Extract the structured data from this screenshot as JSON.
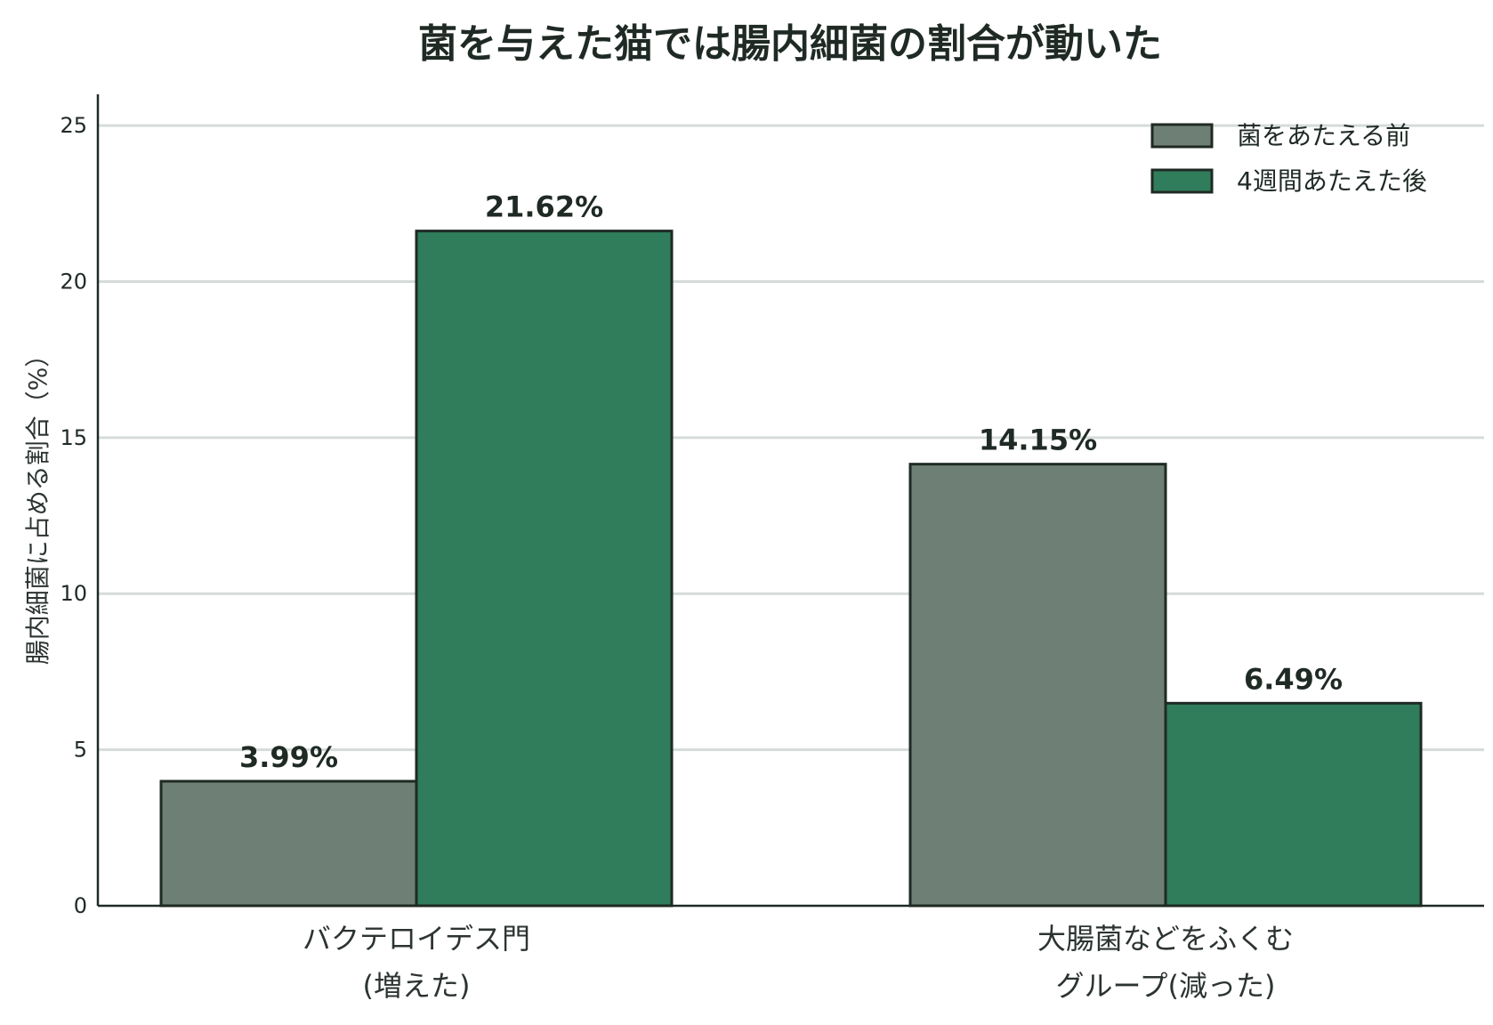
{
  "chart_data": {
    "type": "bar",
    "title": "菌を与えた猫では腸内細菌の割合が動いた",
    "ylabel": "腸内細菌に占める割合（%）",
    "xlabel": "",
    "ylim": [
      0,
      26
    ],
    "yticks": [
      0,
      5,
      10,
      15,
      20,
      25
    ],
    "grid": "y-major",
    "legend_position": "top-right",
    "categories": [
      [
        "バクテロイデス門",
        "(増えた)"
      ],
      [
        "大腸菌などをふくむ",
        "グループ(減った)"
      ]
    ],
    "series": [
      {
        "name": "菌をあたえる前",
        "values": [
          3.99,
          14.15
        ],
        "labels": [
          "3.99%",
          "14.15%"
        ],
        "color": "#6e7f75"
      },
      {
        "name": "4週間あたえた後",
        "values": [
          21.62,
          6.49
        ],
        "labels": [
          "21.62%",
          "6.49%"
        ],
        "color": "#2f7d5a"
      }
    ],
    "colors": {
      "axis": "#1f2a24",
      "grid": "#d5dcd9",
      "bar_edge": "#1f2a24",
      "text": "#1f2a24"
    }
  }
}
